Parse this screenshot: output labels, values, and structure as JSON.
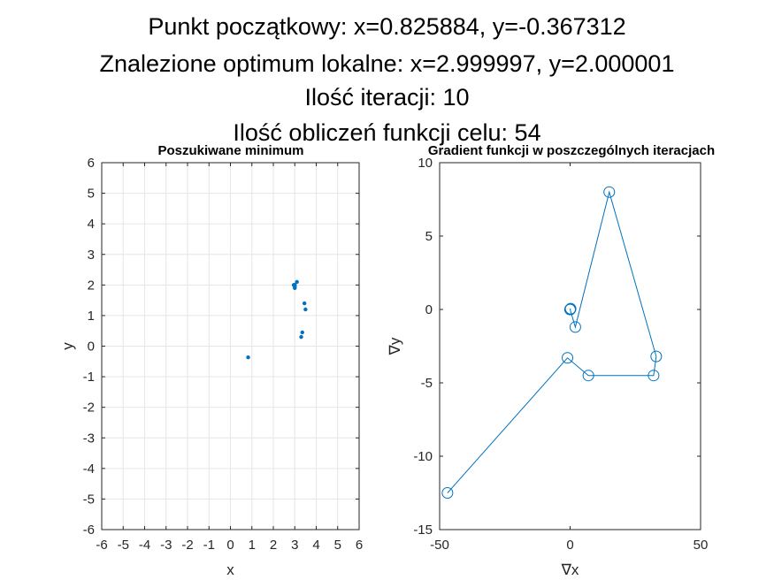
{
  "figure": {
    "title_lines": [
      "Punkt początkowy: x=0.825884, y=-0.367312",
      "Znalezione optimum lokalne: x=2.999997, y=2.000001",
      "Ilość iteracji: 10",
      "Ilość obliczeń funkcji celu: 54"
    ]
  },
  "colors": {
    "series": "#0072BD",
    "grid": "#e6e6e6",
    "axis": "#262626"
  },
  "chart_data": [
    {
      "type": "scatter",
      "title": "Poszukiwane minimum",
      "xlabel": "x",
      "ylabel": "y",
      "xlim": [
        -6,
        6
      ],
      "ylim": [
        -6,
        6
      ],
      "xticks": [
        -6,
        -5,
        -4,
        -3,
        -2,
        -1,
        0,
        1,
        2,
        3,
        4,
        5,
        6
      ],
      "yticks": [
        -6,
        -5,
        -4,
        -3,
        -2,
        -1,
        0,
        1,
        2,
        3,
        4,
        5,
        6
      ],
      "grid": true,
      "marker": "dot",
      "series": [
        {
          "x": [
            0.826,
            3.3,
            3.35,
            3.5,
            3.45,
            2.95,
            3.0,
            3.0,
            3.1,
            3.0,
            3.0
          ],
          "y": [
            -0.367,
            0.3,
            0.45,
            1.2,
            1.4,
            2.0,
            1.95,
            1.9,
            2.1,
            2.0,
            2.0
          ]
        }
      ]
    },
    {
      "type": "line",
      "title": "Gradient funkcji w  poszczególnych iteracjach",
      "xlabel": "∇x",
      "ylabel": "∇y",
      "xlim": [
        -50,
        50
      ],
      "ylim": [
        -15,
        10
      ],
      "xticks": [
        -50,
        0,
        50
      ],
      "yticks": [
        -15,
        -10,
        -5,
        0,
        5,
        10
      ],
      "grid": false,
      "marker": "circle",
      "series": [
        {
          "x": [
            -47,
            -1,
            7,
            32,
            33,
            15,
            2,
            0,
            0.2,
            0.05,
            0
          ],
          "y": [
            -12.5,
            -3.3,
            -4.5,
            -4.5,
            -3.2,
            8,
            -1.2,
            0,
            0.05,
            0,
            0
          ]
        }
      ]
    }
  ]
}
